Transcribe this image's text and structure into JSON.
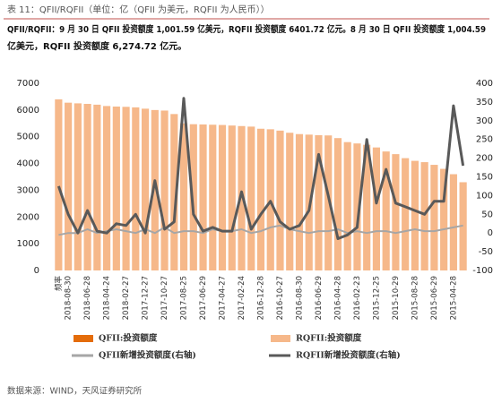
{
  "chart_data": {
    "type": "bar-line",
    "title": "表 11：QFII/RQFII（单位：亿（QFII 为美元，RQFII 为人民币））",
    "subtitle": [
      "QFII/RQFII：9 月 30 日 QFII 投资额度 1,001.59 亿美元，RQFII 投资额度 6401.72 亿元。8 月 30 日 QFII 投资额度 1,004.59",
      "亿美元，RQFII 投资额度 6,274.72 亿元。"
    ],
    "source": "数据来源：WIND，天风证券研究所",
    "categories": [
      "频率",
      "2018-08-30",
      null,
      "2018-06-28",
      null,
      "2018-04-24",
      null,
      "2018-02-27",
      null,
      "2017-12-27",
      null,
      "2017-10-27",
      null,
      "2017-08-25",
      null,
      "2017-06-29",
      null,
      "2017-04-27",
      null,
      "2017-02-24",
      null,
      "2016-12-28",
      null,
      "2016-10-27",
      null,
      "2016-08-30",
      null,
      "2016-06-29",
      null,
      "2016-04-28",
      null,
      "2016-02-23",
      null,
      "2015-12-25",
      null,
      "2015-10-29",
      null,
      "2015-08-28",
      null,
      "2015-06-29",
      null,
      "2015-04-28",
      null
    ],
    "series": [
      {
        "name": "QFII:投资额度",
        "color": "#e46c0a",
        "kind": "bar",
        "values": [
          null,
          null,
          null,
          null,
          null,
          null,
          null,
          null,
          null,
          null,
          null,
          null,
          null,
          null,
          null,
          null,
          null,
          null,
          null,
          null,
          null,
          null,
          null,
          null,
          null,
          null,
          null,
          null,
          null,
          null,
          null,
          null,
          null,
          null,
          null,
          null,
          null,
          null,
          null,
          null,
          null,
          null,
          null
        ]
      },
      {
        "name": "RQFII:投资额度",
        "color": "#f6b88a",
        "kind": "bar",
        "values": [
          6400,
          6275,
          6250,
          6230,
          6200,
          6150,
          6130,
          6120,
          6100,
          6050,
          6000,
          5980,
          5850,
          5500,
          5470,
          5460,
          5450,
          5440,
          5420,
          5400,
          5380,
          5300,
          5280,
          5230,
          5150,
          5100,
          5080,
          5060,
          5050,
          4950,
          4800,
          4750,
          4700,
          4600,
          4450,
          4350,
          4200,
          4100,
          4050,
          3950,
          3800,
          3600,
          3300
        ]
      },
      {
        "name": "QFII新增投资额度(右轴)",
        "color": "#a6a6a6",
        "kind": "line",
        "axis": "y2",
        "values": [
          -5,
          0,
          0,
          10,
          0,
          5,
          10,
          5,
          0,
          10,
          0,
          15,
          0,
          5,
          5,
          0,
          10,
          5,
          5,
          10,
          0,
          5,
          15,
          20,
          10,
          5,
          0,
          5,
          5,
          10,
          0,
          5,
          0,
          5,
          5,
          0,
          5,
          10,
          5,
          5,
          10,
          15,
          20
        ]
      },
      {
        "name": "RQFII新增投资额度(右轴)",
        "color": "#595959",
        "kind": "line",
        "axis": "y2",
        "values": [
          125,
          50,
          0,
          60,
          5,
          0,
          25,
          20,
          50,
          0,
          140,
          10,
          30,
          360,
          50,
          5,
          15,
          5,
          5,
          110,
          10,
          50,
          85,
          30,
          10,
          20,
          60,
          210,
          100,
          -15,
          -5,
          15,
          250,
          80,
          170,
          80,
          70,
          60,
          50,
          85,
          85,
          340,
          180
        ]
      }
    ],
    "ylim": [
      0,
      7000
    ],
    "yticks": [
      0,
      1000,
      2000,
      3000,
      4000,
      5000,
      6000,
      7000
    ],
    "y2lim": [
      -100,
      400
    ],
    "y2ticks": [
      -100,
      -50,
      0,
      50,
      100,
      150,
      200,
      250,
      300,
      350,
      400
    ],
    "grid": false
  }
}
